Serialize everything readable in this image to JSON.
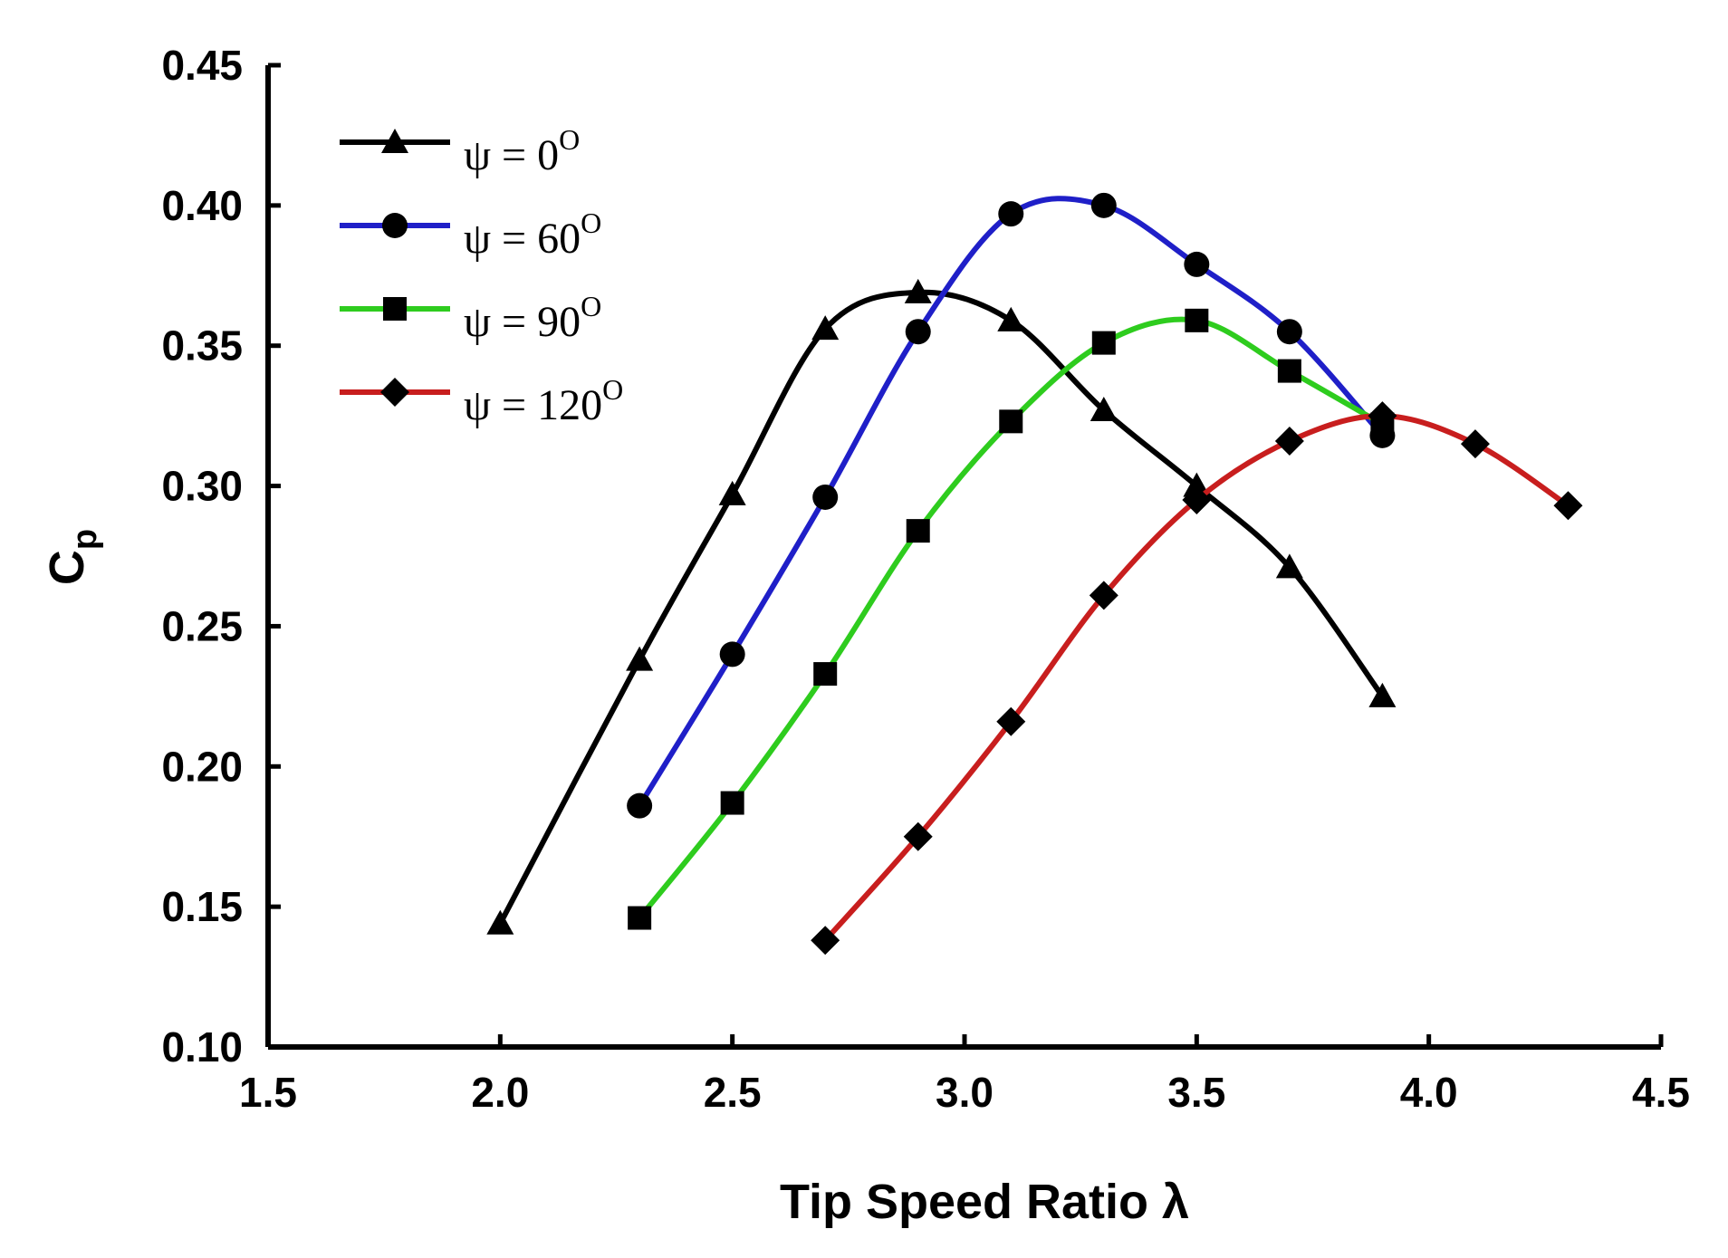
{
  "chart_data": {
    "type": "line",
    "title": "",
    "xlabel": "Tip Speed Ratio λ",
    "ylabel_main": "C",
    "ylabel_sub": "p",
    "xlim": [
      1.5,
      4.5
    ],
    "ylim": [
      0.1,
      0.45
    ],
    "xticks": [
      "1.5",
      "2.0",
      "2.5",
      "3.0",
      "3.5",
      "4.0",
      "4.5"
    ],
    "yticks": [
      "0.10",
      "0.15",
      "0.20",
      "0.25",
      "0.30",
      "0.35",
      "0.40",
      "0.45"
    ],
    "grid": false,
    "legend_position": "top-left",
    "series": [
      {
        "name": "ψ = 0",
        "name_sup": "O",
        "color": "#000000",
        "marker": "triangle",
        "points": [
          [
            2.0,
            0.144
          ],
          [
            2.3,
            0.238
          ],
          [
            2.5,
            0.297
          ],
          [
            2.7,
            0.356
          ],
          [
            2.9,
            0.369
          ],
          [
            3.1,
            0.359
          ],
          [
            3.3,
            0.327
          ],
          [
            3.5,
            0.3
          ],
          [
            3.7,
            0.271
          ],
          [
            3.9,
            0.225
          ]
        ]
      },
      {
        "name": "ψ = 60",
        "name_sup": "O",
        "color": "#1f1fc8",
        "marker": "circle",
        "points": [
          [
            2.3,
            0.186
          ],
          [
            2.5,
            0.24
          ],
          [
            2.7,
            0.296
          ],
          [
            2.9,
            0.355
          ],
          [
            3.1,
            0.397
          ],
          [
            3.3,
            0.4
          ],
          [
            3.5,
            0.379
          ],
          [
            3.7,
            0.355
          ],
          [
            3.9,
            0.318
          ]
        ]
      },
      {
        "name": "ψ = 90",
        "name_sup": "O",
        "color": "#2ecc1e",
        "marker": "square",
        "points": [
          [
            2.3,
            0.146
          ],
          [
            2.5,
            0.187
          ],
          [
            2.7,
            0.233
          ],
          [
            2.9,
            0.284
          ],
          [
            3.1,
            0.323
          ],
          [
            3.3,
            0.351
          ],
          [
            3.5,
            0.359
          ],
          [
            3.7,
            0.341
          ],
          [
            3.9,
            0.322
          ]
        ]
      },
      {
        "name": "ψ = 120",
        "name_sup": "O",
        "color": "#c81e1e",
        "marker": "diamond",
        "points": [
          [
            2.7,
            0.138
          ],
          [
            2.9,
            0.175
          ],
          [
            3.1,
            0.216
          ],
          [
            3.3,
            0.261
          ],
          [
            3.5,
            0.295
          ],
          [
            3.7,
            0.316
          ],
          [
            3.9,
            0.325
          ],
          [
            4.1,
            0.315
          ],
          [
            4.3,
            0.293
          ]
        ]
      }
    ]
  }
}
